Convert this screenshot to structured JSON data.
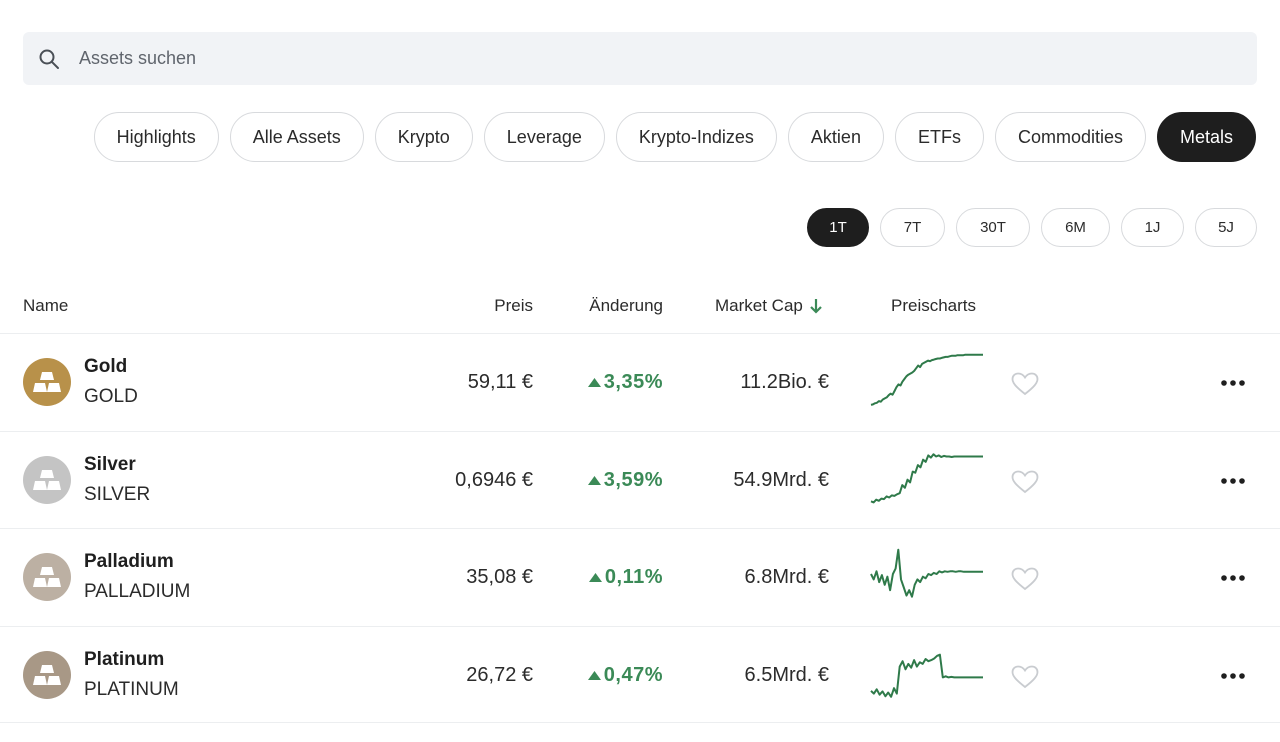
{
  "search": {
    "placeholder": "Assets suchen"
  },
  "categories": [
    {
      "label": "Highlights",
      "active": false
    },
    {
      "label": "Alle Assets",
      "active": false
    },
    {
      "label": "Krypto",
      "active": false
    },
    {
      "label": "Leverage",
      "active": false
    },
    {
      "label": "Krypto-Indizes",
      "active": false
    },
    {
      "label": "Aktien",
      "active": false
    },
    {
      "label": "ETFs",
      "active": false
    },
    {
      "label": "Commodities",
      "active": false
    },
    {
      "label": "Metals",
      "active": true
    }
  ],
  "periods": [
    {
      "label": "1T",
      "active": true
    },
    {
      "label": "7T",
      "active": false
    },
    {
      "label": "30T",
      "active": false
    },
    {
      "label": "6M",
      "active": false
    },
    {
      "label": "1J",
      "active": false
    },
    {
      "label": "5J",
      "active": false
    }
  ],
  "table": {
    "headers": {
      "name": "Name",
      "price": "Preis",
      "change": "Änderung",
      "market_cap": "Market Cap",
      "chart": "Preischarts"
    },
    "sort_icon": "arrow-down-icon",
    "rows": [
      {
        "name": "Gold",
        "symbol": "GOLD",
        "price": "59,11 €",
        "change": "3,35%",
        "market_cap": "11.2Bio. €",
        "logo_color": "#b8914a",
        "spark": [
          2,
          3,
          5,
          6,
          9,
          8,
          12,
          14,
          16,
          20,
          23,
          21,
          28,
          35,
          40,
          38,
          45,
          50,
          55,
          58,
          60,
          62,
          65,
          70,
          75,
          72,
          78,
          80,
          82,
          84,
          83,
          85,
          86,
          87,
          88,
          88,
          89,
          90,
          91,
          91,
          92,
          93,
          93,
          93,
          94,
          94,
          94,
          94,
          95,
          95,
          95,
          95,
          95,
          95,
          95,
          95,
          95,
          95
        ]
      },
      {
        "name": "Silver",
        "symbol": "SILVER",
        "price": "0,6946 €",
        "change": "3,59%",
        "market_cap": "54.9Mrd. €",
        "logo_color": "#c4c4c4",
        "spark": [
          5,
          3,
          8,
          6,
          10,
          9,
          14,
          12,
          16,
          15,
          18,
          20,
          35,
          30,
          45,
          40,
          60,
          58,
          72,
          68,
          82,
          78,
          90,
          86,
          92,
          88,
          90,
          87,
          89,
          88,
          88,
          87,
          88,
          88,
          88,
          88,
          88,
          88,
          88,
          88,
          88,
          88,
          88,
          88
        ]
      },
      {
        "name": "Palladium",
        "symbol": "PALLADIUM",
        "price": "35,08 €",
        "change": "0,11%",
        "market_cap": "6.8Mrd. €",
        "logo_color": "#bcb0a3",
        "spark": [
          50,
          40,
          55,
          35,
          48,
          30,
          45,
          20,
          50,
          60,
          95,
          40,
          25,
          10,
          20,
          8,
          30,
          40,
          35,
          45,
          42,
          50,
          48,
          52,
          50,
          55,
          53,
          55,
          54,
          55,
          55,
          54,
          55,
          55,
          54,
          54,
          54,
          54,
          54,
          54,
          54,
          54
        ]
      },
      {
        "name": "Platinum",
        "symbol": "PLATINUM",
        "price": "26,72 €",
        "change": "0,47%",
        "market_cap": "6.5Mrd. €",
        "logo_color": "#a89886",
        "spark": [
          15,
          10,
          18,
          8,
          14,
          5,
          12,
          4,
          20,
          10,
          60,
          70,
          55,
          65,
          58,
          72,
          60,
          68,
          65,
          74,
          70,
          72,
          75,
          80,
          82,
          40,
          42,
          40,
          41,
          40,
          40,
          40,
          40,
          40,
          40,
          40,
          40,
          40,
          40,
          40
        ]
      }
    ]
  }
}
